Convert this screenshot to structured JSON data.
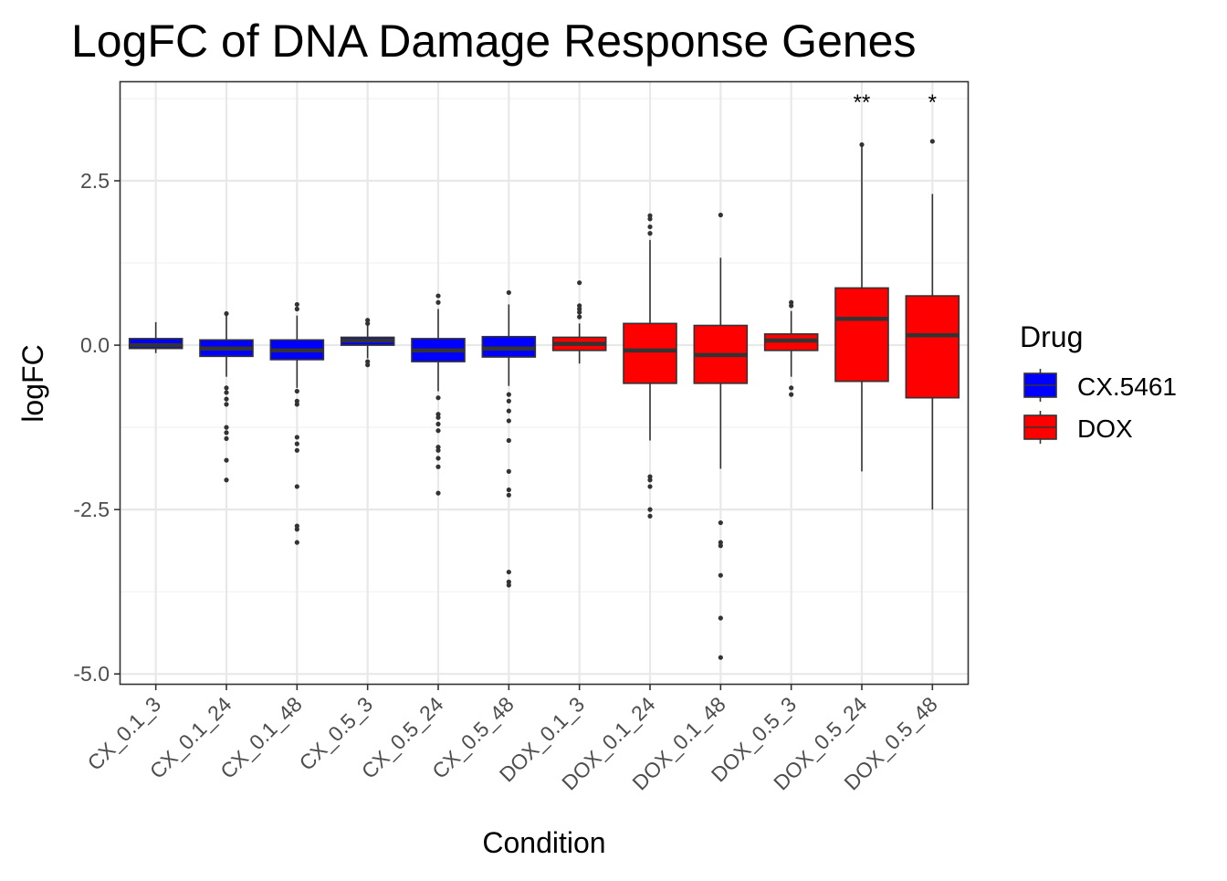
{
  "chart_data": {
    "type": "boxplot",
    "title": "LogFC of DNA Damage Response Genes",
    "xlabel": "Condition",
    "ylabel": "logFC",
    "ylim": [
      -5.15,
      4.0
    ],
    "yticks": [
      2.5,
      0.0,
      -2.5,
      -5.0
    ],
    "ytick_labels": [
      "2.5",
      "0.0",
      "-2.5",
      "-5.0"
    ],
    "grid": true,
    "legend": {
      "title": "Drug",
      "position": "right",
      "entries": [
        {
          "label": "CX.5461",
          "color": "#0000FF"
        },
        {
          "label": "DOX",
          "color": "#FF0000"
        }
      ]
    },
    "categories": [
      "CX_0.1_3",
      "CX_0.1_24",
      "CX_0.1_48",
      "CX_0.5_3",
      "CX_0.5_24",
      "CX_0.5_48",
      "DOX_0.1_3",
      "DOX_0.1_24",
      "DOX_0.1_48",
      "DOX_0.5_3",
      "DOX_0.5_24",
      "DOX_0.5_48"
    ],
    "boxes": [
      {
        "drug": "CX.5461",
        "q1": -0.05,
        "median": 0.0,
        "q3": 0.1,
        "whisker_low": -0.12,
        "whisker_high": 0.35,
        "outliers": [],
        "annotation": ""
      },
      {
        "drug": "CX.5461",
        "q1": -0.17,
        "median": -0.05,
        "q3": 0.08,
        "whisker_low": -0.48,
        "whisker_high": 0.45,
        "outliers": [
          0.48,
          -0.65,
          -0.72,
          -0.82,
          -0.9,
          -1.25,
          -1.33,
          -1.42,
          -1.75,
          -2.05
        ],
        "annotation": ""
      },
      {
        "drug": "CX.5461",
        "q1": -0.22,
        "median": -0.08,
        "q3": 0.08,
        "whisker_low": -0.65,
        "whisker_high": 0.45,
        "outliers": [
          0.55,
          0.62,
          -0.7,
          -0.85,
          -0.9,
          -1.4,
          -1.5,
          -1.6,
          -2.15,
          -2.75,
          -2.8,
          -3.0
        ],
        "annotation": ""
      },
      {
        "drug": "CX.5461",
        "q1": 0.0,
        "median": 0.07,
        "q3": 0.12,
        "whisker_low": -0.2,
        "whisker_high": 0.3,
        "outliers": [
          0.33,
          0.38,
          -0.25,
          -0.3
        ],
        "annotation": ""
      },
      {
        "drug": "CX.5461",
        "q1": -0.25,
        "median": -0.08,
        "q3": 0.1,
        "whisker_low": -0.7,
        "whisker_high": 0.55,
        "outliers": [
          0.65,
          0.75,
          -0.8,
          -1.05,
          -1.1,
          -1.2,
          -1.3,
          -1.55,
          -1.6,
          -1.72,
          -1.85,
          -2.25
        ],
        "annotation": ""
      },
      {
        "drug": "CX.5461",
        "q1": -0.18,
        "median": -0.05,
        "q3": 0.13,
        "whisker_low": -0.62,
        "whisker_high": 0.62,
        "outliers": [
          0.8,
          -0.75,
          -0.85,
          -1.0,
          -1.15,
          -1.45,
          -1.92,
          -2.2,
          -2.28,
          -3.45,
          -3.6,
          -3.65
        ],
        "annotation": ""
      },
      {
        "drug": "DOX",
        "q1": -0.08,
        "median": 0.02,
        "q3": 0.12,
        "whisker_low": -0.28,
        "whisker_high": 0.33,
        "outliers": [
          0.43,
          0.5,
          0.55,
          0.6,
          0.95
        ],
        "annotation": ""
      },
      {
        "drug": "DOX",
        "q1": -0.58,
        "median": -0.08,
        "q3": 0.33,
        "whisker_low": -1.45,
        "whisker_high": 1.6,
        "outliers": [
          1.7,
          1.8,
          1.92,
          1.97,
          -2.0,
          -2.05,
          -2.15,
          -2.5,
          -2.6
        ],
        "annotation": ""
      },
      {
        "drug": "DOX",
        "q1": -0.58,
        "median": -0.15,
        "q3": 0.3,
        "whisker_low": -1.88,
        "whisker_high": 1.33,
        "outliers": [
          1.98,
          -2.7,
          -3.0,
          -3.05,
          -3.5,
          -4.15,
          -4.75
        ],
        "annotation": ""
      },
      {
        "drug": "DOX",
        "q1": -0.08,
        "median": 0.07,
        "q3": 0.17,
        "whisker_low": -0.48,
        "whisker_high": 0.52,
        "outliers": [
          0.6,
          0.65,
          -0.65,
          -0.75
        ],
        "annotation": ""
      },
      {
        "drug": "DOX",
        "q1": -0.55,
        "median": 0.4,
        "q3": 0.87,
        "whisker_low": -1.92,
        "whisker_high": 3.05,
        "outliers": [
          3.05
        ],
        "annotation": "**"
      },
      {
        "drug": "DOX",
        "q1": -0.8,
        "median": 0.15,
        "q3": 0.75,
        "whisker_low": -2.5,
        "whisker_high": 2.3,
        "outliers": [
          3.1
        ],
        "annotation": "*"
      }
    ]
  }
}
